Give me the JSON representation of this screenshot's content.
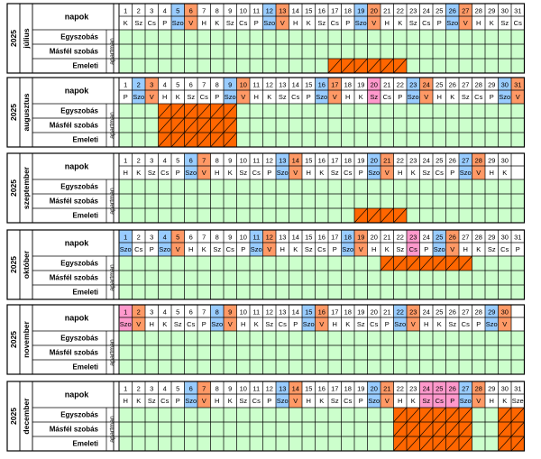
{
  "colors": {
    "grid_bg": "#ccffcc",
    "booked": "#ff6600",
    "saturday": "#99ccff",
    "sunday": "#ff9966",
    "holiday": "#ff99cc",
    "line": "#000000",
    "white": "#ffffff"
  },
  "labels": {
    "days_header": "napok",
    "unit_type": "apartman",
    "rooms": [
      "Egyszobás",
      "Másfél szobás",
      "Emeleti"
    ]
  },
  "months": [
    {
      "year": "2025",
      "name": "július",
      "days": [
        "K",
        "Sz",
        "Cs",
        "P",
        "Szo",
        "V",
        "H",
        "K",
        "Sz",
        "Cs",
        "P",
        "Szo",
        "V",
        "H",
        "K",
        "Sz",
        "Cs",
        "P",
        "Szo",
        "V",
        "H",
        "K",
        "Sz",
        "Cs",
        "P",
        "Szo",
        "V",
        "H",
        "K",
        "Sz",
        "Cs"
      ],
      "holidays": [],
      "bookings": [
        [],
        [],
        [
          17,
          18,
          19,
          20,
          21,
          22
        ]
      ]
    },
    {
      "year": "2025",
      "name": "augusztus",
      "days": [
        "P",
        "Szo",
        "V",
        "H",
        "K",
        "Sz",
        "Cs",
        "P",
        "Szo",
        "V",
        "H",
        "K",
        "Sz",
        "Cs",
        "P",
        "Szo",
        "V",
        "H",
        "K",
        "Sz",
        "Cs",
        "P",
        "Szo",
        "V",
        "H",
        "K",
        "Sz",
        "Cs",
        "P",
        "Szo",
        "V"
      ],
      "holidays": [
        20
      ],
      "bookings": [
        [
          4,
          5,
          6,
          7,
          8,
          9
        ],
        [
          4,
          5,
          6,
          7,
          8,
          9
        ],
        [
          4,
          5,
          6,
          7,
          8,
          9
        ]
      ]
    },
    {
      "year": "2025",
      "name": "szeptember",
      "days": [
        "H",
        "K",
        "Sz",
        "Cs",
        "P",
        "Szo",
        "V",
        "H",
        "K",
        "Sz",
        "Cs",
        "P",
        "Szo",
        "V",
        "H",
        "K",
        "Sz",
        "Cs",
        "P",
        "Szo",
        "V",
        "H",
        "K",
        "Sz",
        "Cs",
        "P",
        "Szo",
        "V",
        "H",
        "K"
      ],
      "holidays": [],
      "bookings": [
        [],
        [],
        [
          19,
          20,
          21,
          22
        ]
      ]
    },
    {
      "year": "2025",
      "name": "október",
      "days": [
        "Szo",
        "Cs",
        "P",
        "Szo",
        "V",
        "H",
        "K",
        "Sz",
        "Cs",
        "P",
        "Szo",
        "V",
        "H",
        "K",
        "Sz",
        "Cs",
        "P",
        "Szo",
        "V",
        "H",
        "K",
        "Sz",
        "Cs",
        "P",
        "Szo",
        "V",
        "H",
        "K",
        "Sz",
        "Cs",
        "P"
      ],
      "holidays": [
        23
      ],
      "bookings": [
        [
          21,
          22,
          23,
          24,
          25,
          26,
          27
        ],
        [],
        []
      ]
    },
    {
      "year": "2025",
      "name": "november",
      "days": [
        "Szo",
        "V",
        "H",
        "K",
        "Sz",
        "Cs",
        "P",
        "Szo",
        "V",
        "H",
        "K",
        "Sz",
        "Cs",
        "P",
        "Szo",
        "V",
        "H",
        "K",
        "Sz",
        "Cs",
        "P",
        "Szo",
        "V",
        "H",
        "K",
        "Sz",
        "Cs",
        "P",
        "Szo",
        "V"
      ],
      "holidays": [
        1
      ],
      "bookings": [
        [],
        [],
        []
      ]
    },
    {
      "year": "2025",
      "name": "december",
      "days": [
        "H",
        "K",
        "Sz",
        "Cs",
        "P",
        "Szo",
        "V",
        "H",
        "K",
        "Sz",
        "Cs",
        "P",
        "Szo",
        "V",
        "H",
        "K",
        "Sz",
        "Cs",
        "P",
        "Szo",
        "V",
        "H",
        "K",
        "Sz",
        "Cs",
        "P",
        "Szo",
        "V",
        "H",
        "K",
        "Sze"
      ],
      "holidays": [
        24,
        25,
        26
      ],
      "bookings": [
        [
          22,
          23,
          24,
          25,
          26,
          27,
          30,
          31
        ],
        [
          22,
          23,
          24,
          25,
          26,
          27,
          30,
          31
        ],
        [
          22,
          23,
          24,
          25,
          26,
          27,
          30,
          31
        ]
      ]
    }
  ]
}
